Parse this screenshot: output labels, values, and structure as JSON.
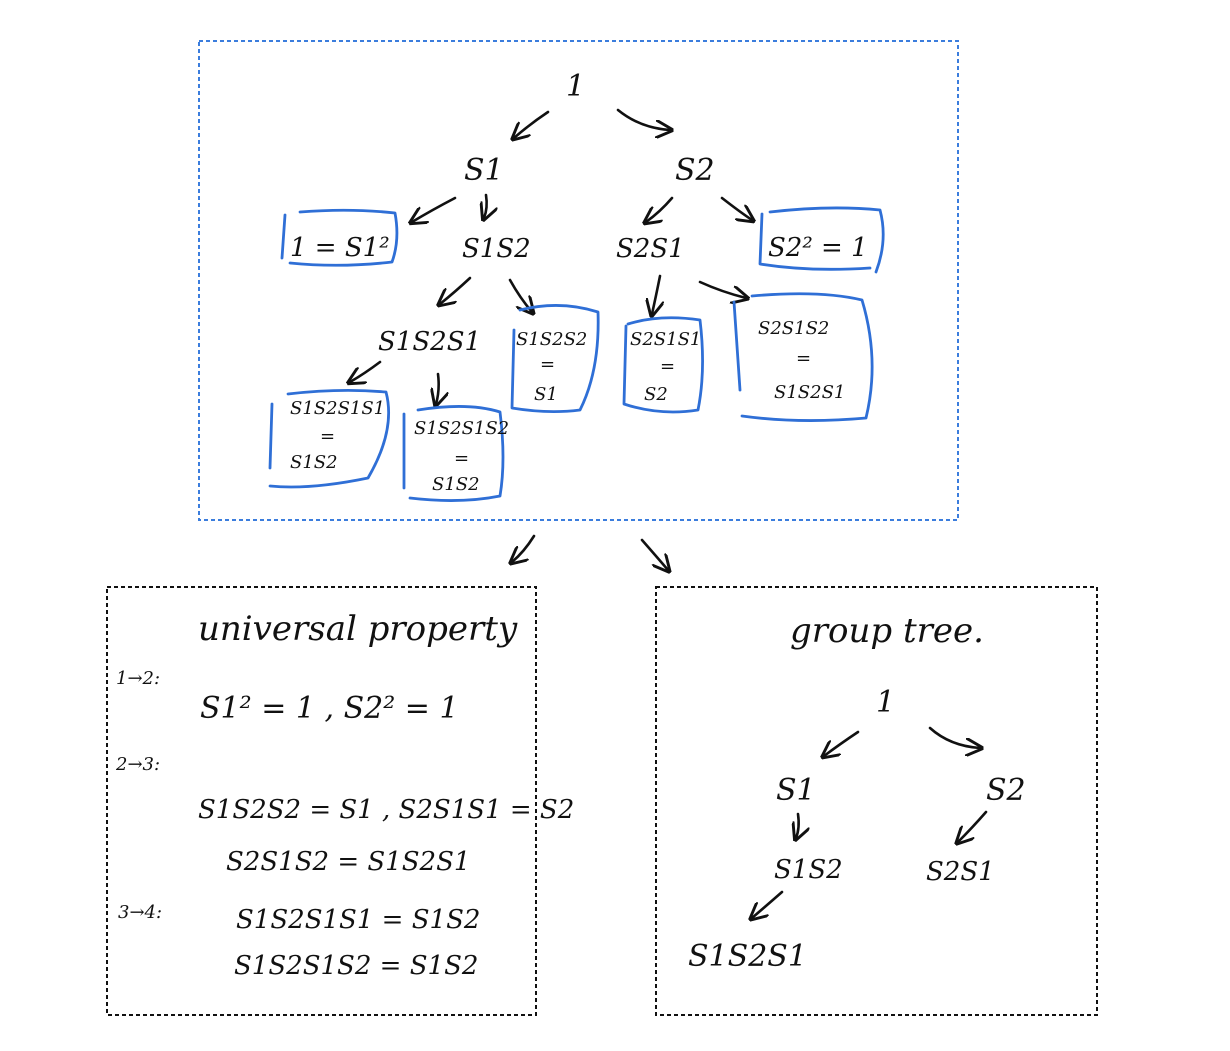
{
  "top_tree": {
    "root": "1",
    "left_child": "S1",
    "right_child": "S2",
    "left_relation": "1 = S1²",
    "right_relation": "S2² = 1",
    "s1s2": "S1S2",
    "s2s1": "S2S1",
    "s1s2s1": "S1S2S1",
    "s1s2s2_box": [
      "S1S2S2",
      "=",
      "S1"
    ],
    "s2s1s1_box": [
      "S2S1S1",
      "=",
      "S2"
    ],
    "s2s1s2_box": [
      "S2S1S2",
      "=",
      "S1S2S1"
    ],
    "s1s2s1s1_box": [
      "S1S2S1S1",
      "=",
      "S1S2"
    ],
    "s1s2s1s2_box": [
      "S1S2S1S2",
      "=",
      "S1S2"
    ]
  },
  "universal_property": {
    "title": "universal property",
    "step1_label": "1→2:",
    "step1_eq": "S1² = 1 ,  S2² = 1",
    "step2_label": "2→3:",
    "step2_eq_a": "S1S2S2 = S1 ,  S2S1S1 = S2",
    "step2_eq_b": "S2S1S2 = S1S2S1",
    "step3_label": "3→4:",
    "step3_eq_a": "S1S2S1S1 = S1S2",
    "step3_eq_b": "S1S2S1S2 = S1S2"
  },
  "group_tree": {
    "title": "group tree.",
    "root": "1",
    "left_child": "S1",
    "right_child": "S2",
    "s1s2": "S1S2",
    "s2s1": "S2S1",
    "s1s2s1": "S1S2S1"
  },
  "colors": {
    "highlight": "#2f6fd6",
    "frame_blue": "#3b7ddd",
    "ink": "#111111"
  }
}
